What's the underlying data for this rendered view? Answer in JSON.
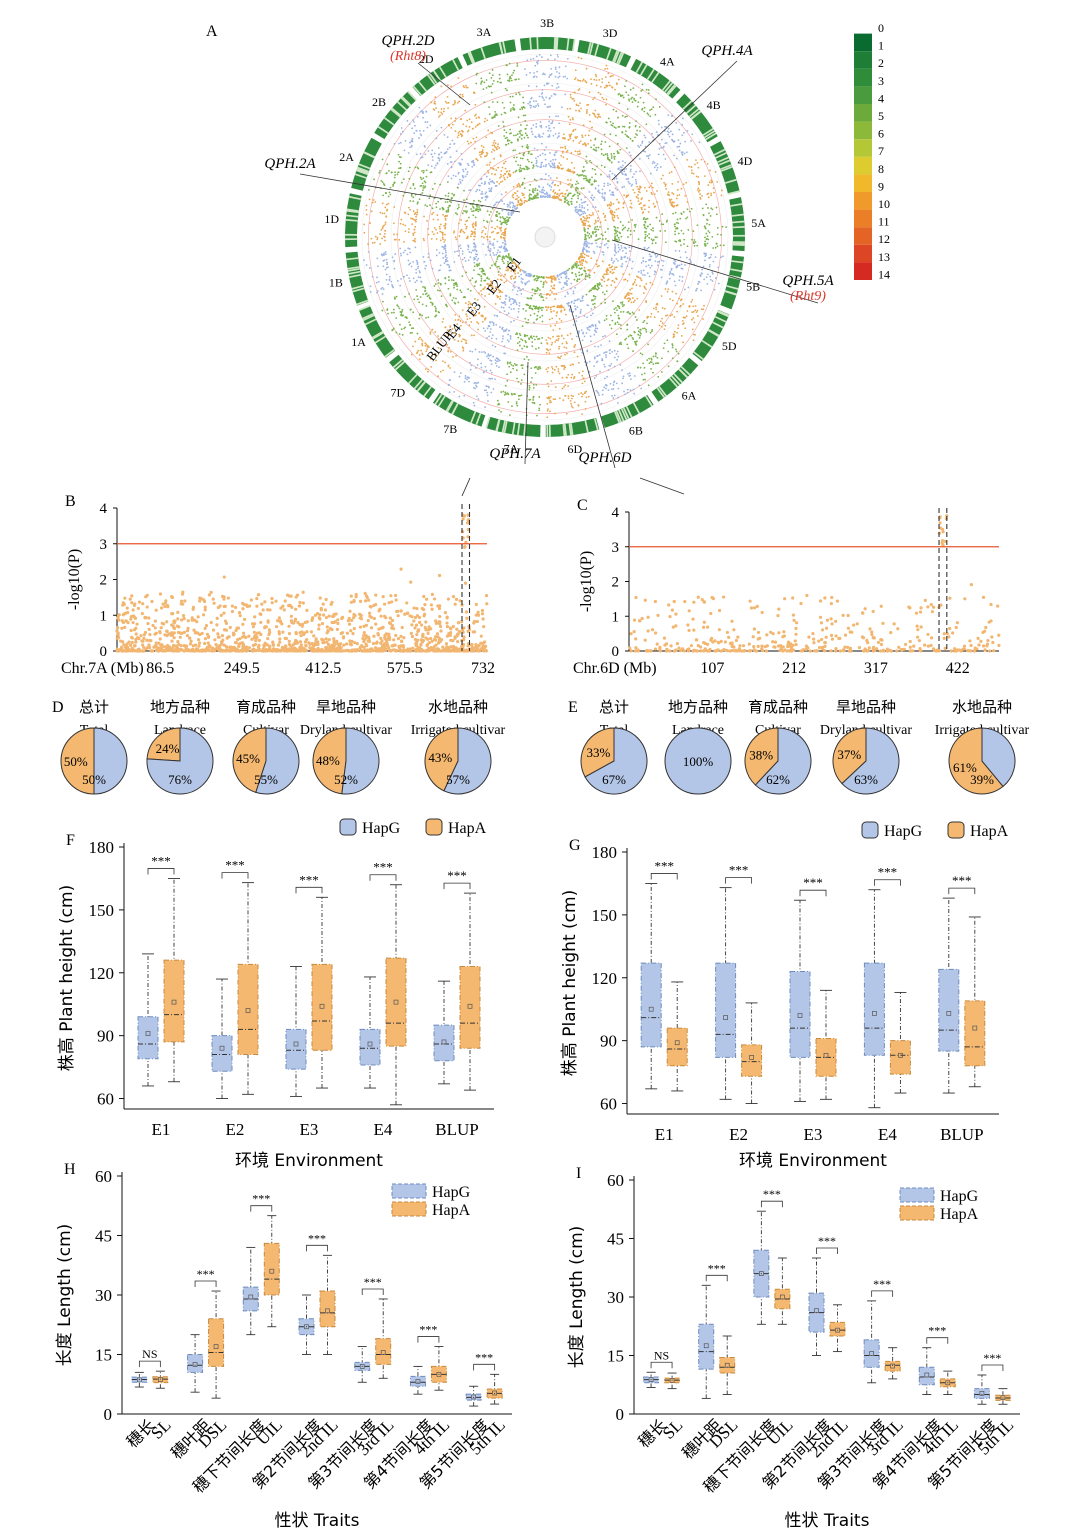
{
  "colors": {
    "hapG_fill": "#b4c6e7",
    "hapG_stroke": "#6e8cbf",
    "hapA_fill": "#f4b870",
    "hapA_stroke": "#c88a3c",
    "manhattan_point": "#f2b671",
    "threshold": "#e8582e",
    "circ_blue": "#9db5e2",
    "circ_orange": "#e8a64f",
    "circ_green": "#7bb34e",
    "qtl_red": "#d9372b"
  },
  "panelA": {
    "label": "A",
    "chromosomes": [
      "3B",
      "3D",
      "4A",
      "4B",
      "4D",
      "5A",
      "5B",
      "5D",
      "6A",
      "6B",
      "6D",
      "7A",
      "7B",
      "7D",
      "1A",
      "1B",
      "1D",
      "2A",
      "2B",
      "2D",
      "3A"
    ],
    "track_labels": [
      "E1",
      "E2",
      "E3",
      "E4",
      "BLUP"
    ],
    "legend_values": [
      "0",
      "1",
      "2",
      "3",
      "4",
      "5",
      "6",
      "7",
      "8",
      "9",
      "10",
      "11",
      "12",
      "13",
      "14"
    ],
    "legend_colors": [
      "#ffffff",
      "#0a6b31",
      "#1f7e35",
      "#2f8d3a",
      "#4a9b3d",
      "#6caa3c",
      "#8db93a",
      "#b4c737",
      "#dccc2f",
      "#f0b82b",
      "#ef9a2a",
      "#eb7f27",
      "#e46425",
      "#dc4624",
      "#d52a22"
    ],
    "qtls": [
      {
        "name": "QPH.2D",
        "sub": "(Rht8)"
      },
      {
        "name": "QPH.4A",
        "sub": ""
      },
      {
        "name": "QPH.2A",
        "sub": ""
      },
      {
        "name": "QPH.5A",
        "sub": "(Rht9)"
      },
      {
        "name": "QPH.7A",
        "sub": ""
      },
      {
        "name": "QPH.6D",
        "sub": ""
      }
    ]
  },
  "chart_data": [
    {
      "panel": "B",
      "type": "scatter",
      "ylabel": "-log10(P)",
      "xlabel": "Chr.7A (Mb)",
      "x_ticks": [
        "86.5",
        "249.5",
        "412.5",
        "575.5",
        "732"
      ],
      "x_tick_values": [
        86.5,
        249.5,
        412.5,
        575.5,
        732
      ],
      "xlim": [
        0,
        740
      ],
      "ylim": [
        0,
        4
      ],
      "y_ticks": [
        "0",
        "1",
        "2",
        "3",
        "4"
      ],
      "threshold": 3,
      "peak_window_mb": [
        690,
        705
      ],
      "n_points": 1400,
      "peak_max": 3.9
    },
    {
      "panel": "C",
      "type": "scatter",
      "ylabel": "-log10(P)",
      "xlabel": "Chr.6D (Mb)",
      "x_ticks": [
        "107",
        "212",
        "317",
        "422"
      ],
      "x_tick_values": [
        107,
        212,
        317,
        422
      ],
      "xlim": [
        0,
        475
      ],
      "ylim": [
        0,
        4
      ],
      "y_ticks": [
        "0",
        "1",
        "2",
        "3",
        "4"
      ],
      "threshold": 3,
      "peak_window_mb": [
        398,
        408
      ],
      "n_points": 420,
      "peak_max": 3.9
    },
    {
      "panel": "D",
      "type": "pie",
      "groups": [
        {
          "cn": "总计",
          "en": "Total",
          "hapG": 50,
          "hapA": 50,
          "labelG": "50%",
          "labelA": "50%"
        },
        {
          "cn": "地方品种",
          "en": "Landrace",
          "hapG": 76,
          "hapA": 24,
          "labelG": "76%",
          "labelA": "24%"
        },
        {
          "cn": "育成品种",
          "en": "Cultivar",
          "hapG": 55,
          "hapA": 45,
          "labelG": "55%",
          "labelA": "45%"
        },
        {
          "cn": "旱地品种",
          "en": "Dryland cultivar",
          "hapG": 52,
          "hapA": 48,
          "labelG": "52%",
          "labelA": "48%"
        },
        {
          "cn": "水地品种",
          "en": "Irrigated cultivar",
          "hapG": 57,
          "hapA": 43,
          "labelG": "57%",
          "labelA": "43%"
        }
      ],
      "legend": [
        "HapG",
        "HapA"
      ]
    },
    {
      "panel": "E",
      "type": "pie",
      "groups": [
        {
          "cn": "总计",
          "en": "Total",
          "hapG": 67,
          "hapA": 33,
          "labelG": "67%",
          "labelA": "33%"
        },
        {
          "cn": "地方品种",
          "en": "Landrace",
          "hapG": 100,
          "hapA": 0,
          "labelG": "100%",
          "labelA": ""
        },
        {
          "cn": "育成品种",
          "en": "Cultivar",
          "hapG": 62,
          "hapA": 38,
          "labelG": "62%",
          "labelA": "38%"
        },
        {
          "cn": "旱地品种",
          "en": "Dryland cultivar",
          "hapG": 63,
          "hapA": 37,
          "labelG": "63%",
          "labelA": "37%"
        },
        {
          "cn": "水地品种",
          "en": "Irrigated cultivar",
          "hapG": 39,
          "hapA": 61,
          "labelG": "39%",
          "labelA": "61%"
        }
      ],
      "legend": [
        "HapG",
        "HapA"
      ]
    },
    {
      "panel": "F",
      "type": "box",
      "ylabel": "株高 Plant height (cm)",
      "xlabel": "环境 Environment",
      "ylim": [
        55,
        180
      ],
      "y_ticks": [
        60,
        90,
        120,
        150,
        180
      ],
      "categories": [
        "E1",
        "E2",
        "E3",
        "E4",
        "BLUP"
      ],
      "sig": [
        "***",
        "***",
        "***",
        "***",
        "***"
      ],
      "series": [
        {
          "name": "HapG",
          "boxes": [
            [
              66,
              79,
              86,
              99,
              129,
              91
            ],
            [
              60,
              73,
              81,
              90,
              117,
              84
            ],
            [
              61,
              74,
              83,
              93,
              123,
              86
            ],
            [
              65,
              76,
              84,
              93,
              118,
              86
            ],
            [
              67,
              78,
              86,
              95,
              116,
              87
            ]
          ]
        },
        {
          "name": "HapA",
          "boxes": [
            [
              68,
              87,
              100,
              126,
              165,
              106
            ],
            [
              62,
              81,
              93,
              124,
              163,
              102
            ],
            [
              65,
              83,
              97,
              124,
              156,
              104
            ],
            [
              57,
              85,
              96,
              127,
              162,
              106
            ],
            [
              64,
              84,
              96,
              123,
              158,
              104
            ]
          ]
        }
      ]
    },
    {
      "panel": "G",
      "type": "box",
      "ylabel": "株高 Plant height (cm)",
      "xlabel": "环境 Environment",
      "ylim": [
        55,
        180
      ],
      "y_ticks": [
        60,
        90,
        120,
        150,
        180
      ],
      "categories": [
        "E1",
        "E2",
        "E3",
        "E4",
        "BLUP"
      ],
      "sig": [
        "***",
        "***",
        "***",
        "***",
        "***"
      ],
      "series": [
        {
          "name": "HapG",
          "boxes": [
            [
              67,
              87,
              101,
              127,
              165,
              105
            ],
            [
              62,
              82,
              93,
              127,
              163,
              101
            ],
            [
              61,
              82,
              96,
              123,
              157,
              102
            ],
            [
              58,
              83,
              96,
              127,
              162,
              103
            ],
            [
              65,
              85,
              95,
              124,
              158,
              103
            ]
          ]
        },
        {
          "name": "HapA",
          "boxes": [
            [
              66,
              78,
              86,
              96,
              118,
              89
            ],
            [
              60,
              73,
              80,
              88,
              108,
              82
            ],
            [
              62,
              73,
              82,
              91,
              114,
              83
            ],
            [
              65,
              74,
              83,
              90,
              113,
              83
            ],
            [
              68,
              78,
              87,
              109,
              149,
              96
            ]
          ]
        }
      ]
    },
    {
      "panel": "H",
      "type": "box",
      "ylabel": "长度 Length (cm)",
      "xlabel": "性状 Traits",
      "ylim": [
        0,
        60
      ],
      "y_ticks": [
        0,
        15,
        30,
        45,
        60
      ],
      "categories": [
        {
          "cn": "穗长",
          "en": "SL"
        },
        {
          "cn": "穗叶距",
          "en": "DSL"
        },
        {
          "cn": "穗下节间长度",
          "en": "UIL"
        },
        {
          "cn": "第2节间长度",
          "en": "2nd IL"
        },
        {
          "cn": "第3节间长度",
          "en": "3rd IL"
        },
        {
          "cn": "第4节间长度",
          "en": "4th IL"
        },
        {
          "cn": "第5节间长度",
          "en": "5th IL"
        }
      ],
      "sig": [
        "NS",
        "***",
        "***",
        "***",
        "***",
        "***",
        "***"
      ],
      "legend": [
        "HapG",
        "HapA"
      ],
      "series": [
        {
          "name": "HapG",
          "boxes": [
            [
              6.8,
              8.0,
              8.7,
              9.3,
              10.5,
              8.6
            ],
            [
              5.5,
              10.5,
              12.3,
              15,
              20,
              12.5
            ],
            [
              20,
              26,
              29,
              32,
              42,
              29.5
            ],
            [
              15,
              20,
              22,
              24,
              30,
              22
            ],
            [
              8,
              11,
              12,
              13,
              17,
              12
            ],
            [
              5,
              7,
              8,
              9.5,
              12,
              8.2
            ],
            [
              2,
              3.5,
              4.2,
              5,
              7,
              4.3
            ]
          ]
        },
        {
          "name": "HapA",
          "boxes": [
            [
              6.5,
              7.9,
              8.8,
              9.4,
              10.8,
              8.7
            ],
            [
              4,
              12,
              15.5,
              24,
              31,
              17
            ],
            [
              22,
              30,
              34,
              43,
              50,
              36
            ],
            [
              15,
              22,
              25.5,
              31,
              40,
              26
            ],
            [
              9,
              12.5,
              15,
              19,
              29,
              15.5
            ],
            [
              6,
              8,
              10,
              12,
              17,
              10
            ],
            [
              2.5,
              4,
              5.2,
              6.3,
              10,
              5.3
            ]
          ]
        }
      ]
    },
    {
      "panel": "I",
      "type": "box",
      "ylabel": "长度 Length (cm)",
      "xlabel": "性状 Traits",
      "ylim": [
        0,
        60
      ],
      "y_ticks": [
        0,
        15,
        30,
        45,
        60
      ],
      "categories": [
        {
          "cn": "穗长",
          "en": "SL"
        },
        {
          "cn": "穗叶距",
          "en": "DSL"
        },
        {
          "cn": "穗下节间长度",
          "en": "UIL"
        },
        {
          "cn": "第2节间长度",
          "en": "2nd IL"
        },
        {
          "cn": "第3节间长度",
          "en": "3rd IL"
        },
        {
          "cn": "第4节间长度",
          "en": "4th IL"
        },
        {
          "cn": "第5节间长度",
          "en": "5th IL"
        }
      ],
      "sig": [
        "NS",
        "***",
        "***",
        "***",
        "***",
        "***",
        "***"
      ],
      "legend": [
        "HapG",
        "HapA"
      ],
      "series": [
        {
          "name": "HapG",
          "boxes": [
            [
              6.8,
              8.0,
              8.8,
              9.5,
              10.7,
              8.8
            ],
            [
              4,
              11.5,
              16,
              23,
              33,
              17.5
            ],
            [
              23,
              30,
              36,
              42,
              52,
              36
            ],
            [
              15,
              21,
              26,
              31,
              40,
              26.5
            ],
            [
              8,
              12,
              15,
              19,
              29,
              15.5
            ],
            [
              5,
              7.5,
              9.5,
              12,
              17,
              10
            ],
            [
              2.5,
              4,
              5,
              6.5,
              10,
              5.3
            ]
          ]
        },
        {
          "name": "HapA",
          "boxes": [
            [
              6.5,
              8.0,
              8.7,
              9.2,
              10.5,
              8.6
            ],
            [
              5,
              10.5,
              12,
              14.5,
              20,
              12.5
            ],
            [
              23,
              27,
              29.5,
              32,
              40,
              30
            ],
            [
              16,
              20,
              21.5,
              23.5,
              28,
              21.5
            ],
            [
              9,
              11,
              12.5,
              13.5,
              17,
              12.3
            ],
            [
              5,
              7,
              8,
              9,
              11,
              8
            ],
            [
              2.5,
              3.5,
              4.1,
              4.8,
              6.5,
              4.2
            ]
          ]
        }
      ]
    }
  ]
}
